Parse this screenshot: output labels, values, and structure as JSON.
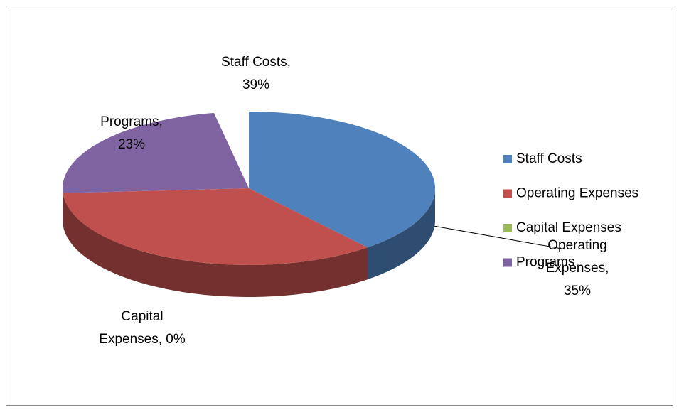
{
  "chart_data": {
    "type": "pie3d",
    "categories": [
      "Staff Costs",
      "Operating Expenses",
      "Capital Expenses",
      "Programs"
    ],
    "values": [
      39,
      35,
      0,
      23
    ],
    "colors": [
      "#4f81bd",
      "#c0504d",
      "#9bbb59",
      "#8064a2"
    ],
    "data_labels": [
      [
        "Staff Costs,",
        "39%"
      ],
      [
        "Operating",
        "Expenses,",
        "35%"
      ],
      [
        "Capital",
        "Expenses, 0%"
      ],
      [
        "Programs,",
        "23%"
      ]
    ],
    "legend": "right"
  }
}
